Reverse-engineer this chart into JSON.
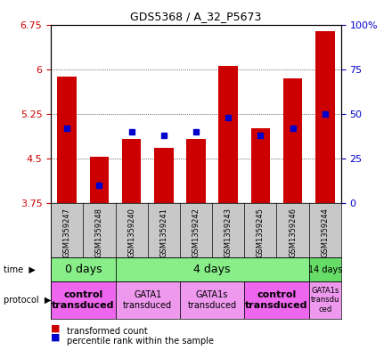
{
  "title": "GDS5368 / A_32_P5673",
  "samples": [
    "GSM1359247",
    "GSM1359248",
    "GSM1359240",
    "GSM1359241",
    "GSM1359242",
    "GSM1359243",
    "GSM1359245",
    "GSM1359246",
    "GSM1359244"
  ],
  "transformed_counts": [
    5.88,
    4.52,
    4.82,
    4.68,
    4.82,
    6.05,
    5.0,
    5.85,
    6.64
  ],
  "percentile_ranks": [
    42,
    10,
    40,
    38,
    40,
    48,
    38,
    42,
    50
  ],
  "ymin": 3.75,
  "ymax": 6.75,
  "yticks": [
    3.75,
    4.5,
    5.25,
    6.0,
    6.75
  ],
  "ytick_labels": [
    "3.75",
    "4.5",
    "5.25",
    "6",
    "6.75"
  ],
  "y2ticks": [
    0,
    25,
    50,
    75,
    100
  ],
  "y2tick_labels": [
    "0",
    "25",
    "50",
    "75",
    "100%"
  ],
  "bar_color": "#CC0000",
  "percentile_color": "#0000CC",
  "label_bg": "#C8C8C8",
  "time_data": [
    {
      "start": 0,
      "end": 2,
      "label": "0 days",
      "color": "#88EE88",
      "fontsize": 9
    },
    {
      "start": 2,
      "end": 8,
      "label": "4 days",
      "color": "#88EE88",
      "fontsize": 9
    },
    {
      "start": 8,
      "end": 9,
      "label": "14 days",
      "color": "#66DD66",
      "fontsize": 7
    }
  ],
  "proto_data": [
    {
      "start": 0,
      "end": 2,
      "label": "control\ntransduced",
      "color": "#EE66EE",
      "bold": true,
      "fontsize": 8
    },
    {
      "start": 2,
      "end": 4,
      "label": "GATA1\ntransduced",
      "color": "#EE99EE",
      "bold": false,
      "fontsize": 7
    },
    {
      "start": 4,
      "end": 6,
      "label": "GATA1s\ntransduced",
      "color": "#EE99EE",
      "bold": false,
      "fontsize": 7
    },
    {
      "start": 6,
      "end": 8,
      "label": "control\ntransduced",
      "color": "#EE66EE",
      "bold": true,
      "fontsize": 8
    },
    {
      "start": 8,
      "end": 9,
      "label": "GATA1s\ntransdu\nced",
      "color": "#EE99EE",
      "bold": false,
      "fontsize": 6
    }
  ],
  "bar_color_red": "#CC0000",
  "percentile_color_blue": "#0000CC"
}
